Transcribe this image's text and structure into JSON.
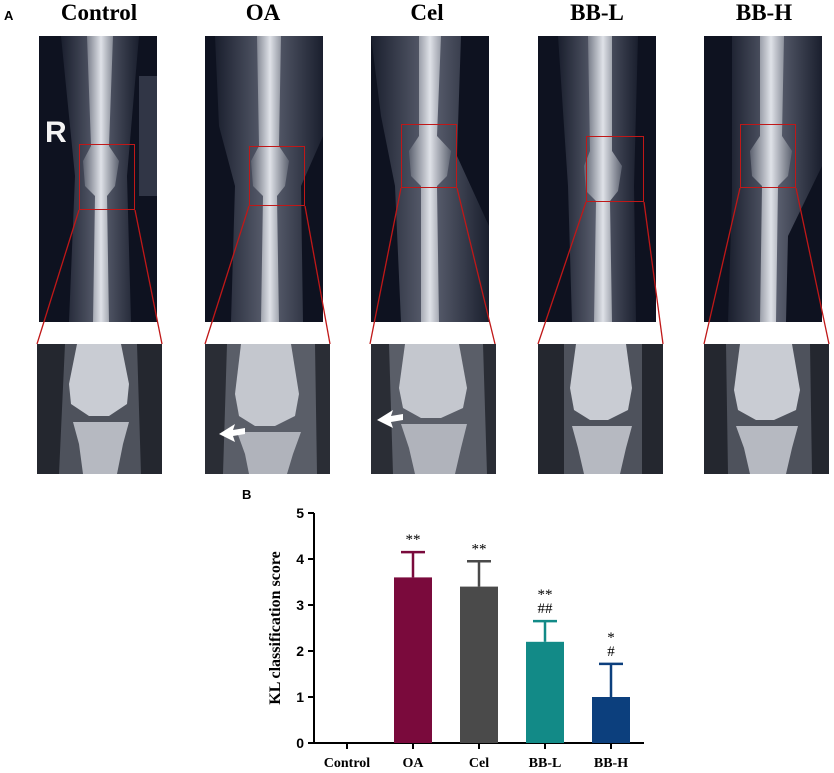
{
  "figure": {
    "panel_a_label": "A",
    "panel_b_label": "B",
    "side_marker": "R",
    "groups": [
      {
        "title": "Control",
        "arrow": false
      },
      {
        "title": "OA",
        "arrow": true
      },
      {
        "title": "Cel",
        "arrow": true
      },
      {
        "title": "BB-L",
        "arrow": false
      },
      {
        "title": "BB-H",
        "arrow": false
      }
    ]
  },
  "chart_data": {
    "type": "bar",
    "categories": [
      "Control",
      "OA",
      "Cel",
      "BB-L",
      "BB-H"
    ],
    "values": [
      0,
      3.6,
      3.4,
      2.2,
      1.0
    ],
    "errors": [
      0,
      0.55,
      0.55,
      0.45,
      0.72
    ],
    "colors": [
      "#000000",
      "#7a0a3c",
      "#4a4a4a",
      "#128a87",
      "#0c3f7d"
    ],
    "annotations": [
      {
        "category": "OA",
        "lines": [
          "**"
        ]
      },
      {
        "category": "Cel",
        "lines": [
          "**"
        ]
      },
      {
        "category": "BB-L",
        "lines": [
          "**",
          "##"
        ]
      },
      {
        "category": "BB-H",
        "lines": [
          "*",
          "#"
        ]
      }
    ],
    "ylabel": "KL classification score",
    "xlabel": "",
    "ylim": [
      0,
      5
    ],
    "yticks": [
      0,
      1,
      2,
      3,
      4,
      5
    ],
    "grid": false,
    "legend": "none"
  }
}
